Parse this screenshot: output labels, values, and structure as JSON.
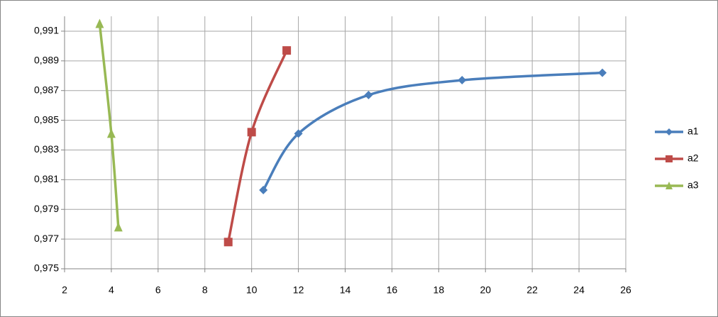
{
  "chart_data": {
    "type": "scatter",
    "lines": "smooth",
    "xlim": [
      2,
      26
    ],
    "xticks": [
      2,
      4,
      6,
      8,
      10,
      12,
      14,
      16,
      18,
      20,
      22,
      24,
      26
    ],
    "ylim": [
      0.975,
      0.992
    ],
    "yticks": [
      {
        "value": 0.975,
        "label": "0,975"
      },
      {
        "value": 0.977,
        "label": "0,977"
      },
      {
        "value": 0.979,
        "label": "0,979"
      },
      {
        "value": 0.981,
        "label": "0,981"
      },
      {
        "value": 0.983,
        "label": "0,983"
      },
      {
        "value": 0.985,
        "label": "0,985"
      },
      {
        "value": 0.987,
        "label": "0,987"
      },
      {
        "value": 0.989,
        "label": "0,989"
      },
      {
        "value": 0.991,
        "label": "0,991"
      }
    ],
    "grid": true,
    "legend": "right",
    "series": [
      {
        "name": "a1",
        "color": "#4a7ebb",
        "marker": "diamond",
        "x": [
          10.5,
          12,
          15,
          19,
          25
        ],
        "values": [
          0.9803,
          0.9841,
          0.9867,
          0.9877,
          0.9882
        ]
      },
      {
        "name": "a2",
        "color": "#be4b48",
        "marker": "square",
        "x": [
          9,
          10,
          11.5
        ],
        "values": [
          0.9768,
          0.9842,
          0.9897
        ]
      },
      {
        "name": "a3",
        "color": "#98b954",
        "marker": "triangle",
        "x": [
          3.5,
          4,
          4.3
        ],
        "values": [
          0.9915,
          0.9841,
          0.9778
        ]
      }
    ]
  }
}
